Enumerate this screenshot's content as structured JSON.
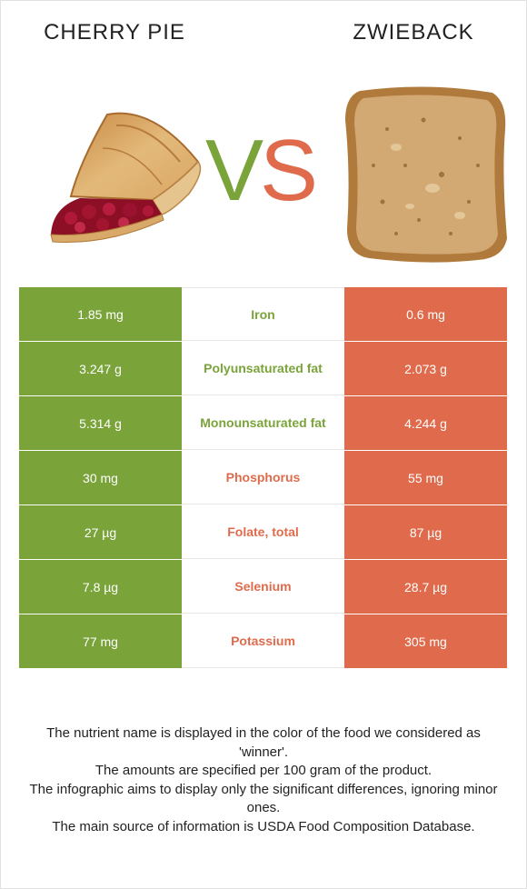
{
  "header": {
    "left_food": "CHERRY PIE",
    "right_food": "ZWIEBACK",
    "vs_v": "V",
    "vs_s": "S"
  },
  "colors": {
    "winner_left": "#7aa33a",
    "winner_right": "#e06b4c"
  },
  "rows": [
    {
      "left": "1.85 mg",
      "nutrient": "Iron",
      "right": "0.6 mg",
      "winner": "left"
    },
    {
      "left": "3.247 g",
      "nutrient": "Polyunsaturated fat",
      "right": "2.073 g",
      "winner": "left"
    },
    {
      "left": "5.314 g",
      "nutrient": "Monounsaturated fat",
      "right": "4.244 g",
      "winner": "left"
    },
    {
      "left": "30 mg",
      "nutrient": "Phosphorus",
      "right": "55 mg",
      "winner": "right"
    },
    {
      "left": "27 µg",
      "nutrient": "Folate, total",
      "right": "87 µg",
      "winner": "right"
    },
    {
      "left": "7.8 µg",
      "nutrient": "Selenium",
      "right": "28.7 µg",
      "winner": "right"
    },
    {
      "left": "77 mg",
      "nutrient": "Potassium",
      "right": "305 mg",
      "winner": "right"
    }
  ],
  "footnote": {
    "line1": "The nutrient name is displayed in the color of the food we considered as 'winner'.",
    "line2": "The amounts are specified per 100 gram of the product.",
    "line3": "The infographic aims to display only the significant differences, ignoring minor ones.",
    "line4": "The main source of information is USDA Food Composition Database."
  }
}
